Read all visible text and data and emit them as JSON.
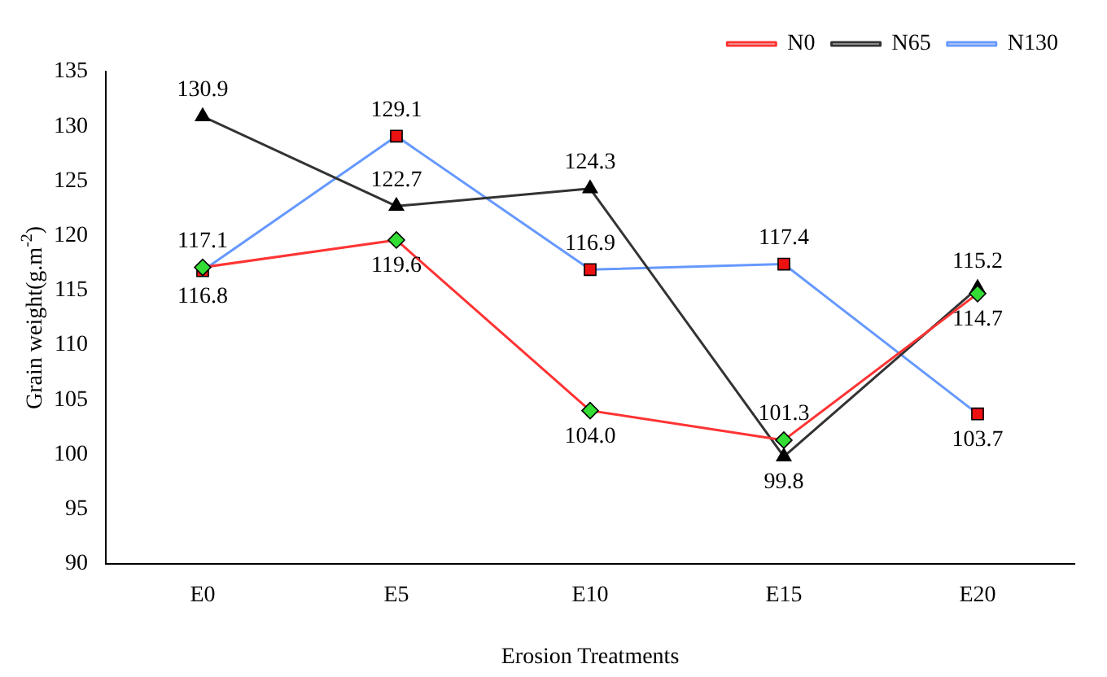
{
  "chart_data": {
    "type": "line",
    "xlabel": "Erosion Treatments",
    "ylabel": "Grain weight(g.m$^{-2}$)",
    "categories": [
      "E0",
      "E5",
      "E10",
      "E15",
      "E20"
    ],
    "series": [
      {
        "name": "N0",
        "color": "#ff3333",
        "colors": [
          "#33dd33",
          "#33dd33",
          "#33dd33",
          "#33dd33",
          "#33dd33"
        ],
        "marker": "diamond",
        "values": [
          117.1,
          119.6,
          104.0,
          101.3,
          114.7
        ],
        "value_labels": [
          "117.1",
          "119.6",
          "104.0",
          "101.3",
          "114.7"
        ]
      },
      {
        "name": "N65",
        "color": "#333333",
        "colors": [
          "#000000",
          "#000000",
          "#000000",
          "#000000",
          "#000000"
        ],
        "marker": "triangle",
        "values": [
          130.9,
          122.7,
          124.3,
          99.8,
          115.2
        ],
        "value_labels": [
          "130.9",
          "122.7",
          "124.3",
          "99.8",
          "115.2"
        ]
      },
      {
        "name": "N130",
        "color": "#6699ff",
        "colors": [
          "#ee1111",
          "#ee1111",
          "#ee1111",
          "#ee1111",
          "#ee1111"
        ],
        "marker": "square",
        "values": [
          116.8,
          129.1,
          116.9,
          117.4,
          103.7
        ],
        "value_labels": [
          "116.8",
          "129.1",
          "116.9",
          "117.4",
          "103.7"
        ]
      }
    ],
    "ylim": [
      90,
      135
    ],
    "yticks": [
      90,
      95,
      100,
      105,
      110,
      115,
      120,
      125,
      130,
      135
    ],
    "grid": false,
    "legend": "top right"
  }
}
